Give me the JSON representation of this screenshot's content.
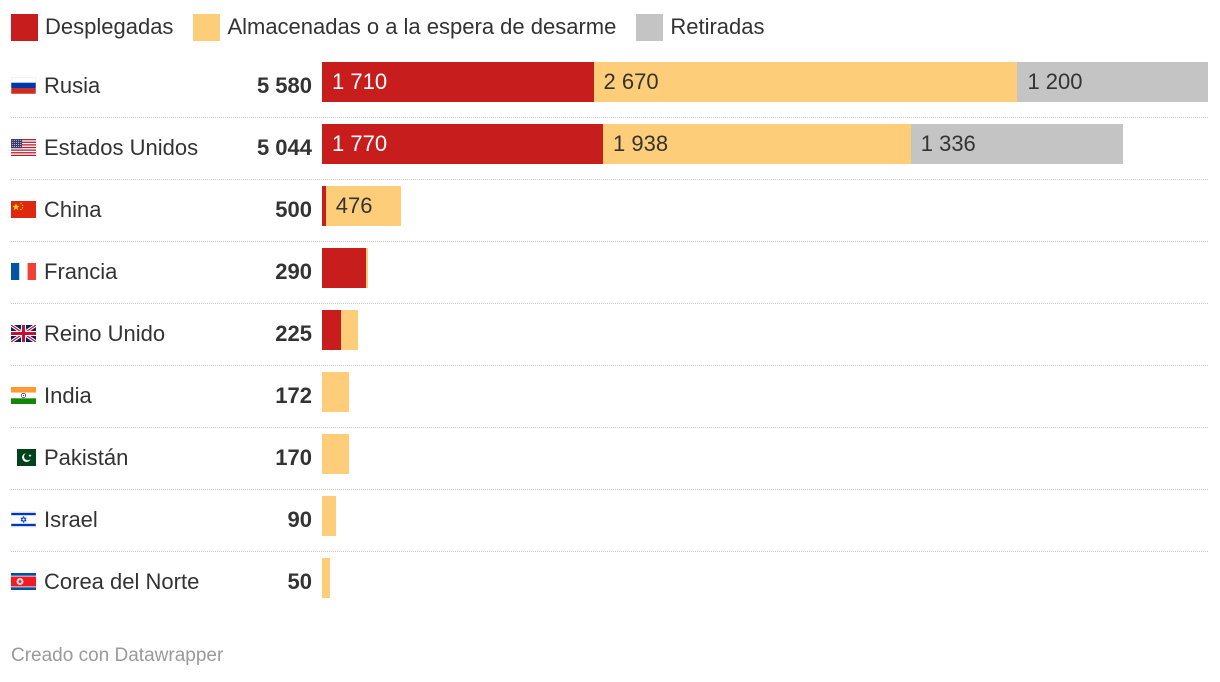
{
  "colors": {
    "desplegadas": "#c71e1d",
    "almacenadas": "#fecd79",
    "retiradas": "#c4c4c4"
  },
  "legend": [
    {
      "label": "Desplegadas",
      "color": "#c71e1d"
    },
    {
      "label": "Almacenadas o a la espera de desarme",
      "color": "#fecd79"
    },
    {
      "label": "Retiradas",
      "color": "#c4c4c4"
    }
  ],
  "chart_data": {
    "type": "bar",
    "orientation": "horizontal",
    "stacked": true,
    "title": "",
    "xlabel": "",
    "ylabel": "",
    "xlim": [
      0,
      5580
    ],
    "grid": false,
    "legend_position": "top-left",
    "series": [
      {
        "name": "Desplegadas",
        "color": "#c71e1d",
        "values": [
          1710,
          1770,
          24,
          280,
          120,
          0,
          0,
          0,
          0
        ]
      },
      {
        "name": "Almacenadas o a la espera de desarme",
        "color": "#fecd79",
        "values": [
          2670,
          1938,
          476,
          10,
          105,
          172,
          170,
          90,
          50
        ]
      },
      {
        "name": "Retiradas",
        "color": "#c4c4c4",
        "values": [
          1200,
          1336,
          0,
          0,
          0,
          0,
          0,
          0,
          0
        ]
      }
    ],
    "rows": [
      {
        "country": "Rusia",
        "flag": "russia-flag-icon",
        "total": "5 580",
        "segments": [
          {
            "value": 1710,
            "label": "1 710"
          },
          {
            "value": 2670,
            "label": "2 670"
          },
          {
            "value": 1200,
            "label": "1 200"
          }
        ]
      },
      {
        "country": "Estados Unidos",
        "flag": "usa-flag-icon",
        "total": "5 044",
        "segments": [
          {
            "value": 1770,
            "label": "1 770"
          },
          {
            "value": 1938,
            "label": "1 938"
          },
          {
            "value": 1336,
            "label": "1 336"
          }
        ]
      },
      {
        "country": "China",
        "flag": "china-flag-icon",
        "total": "500",
        "segments": [
          {
            "value": 24,
            "label": ""
          },
          {
            "value": 476,
            "label": "476"
          },
          {
            "value": 0,
            "label": ""
          }
        ]
      },
      {
        "country": "Francia",
        "flag": "france-flag-icon",
        "total": "290",
        "segments": [
          {
            "value": 280,
            "label": ""
          },
          {
            "value": 10,
            "label": ""
          },
          {
            "value": 0,
            "label": ""
          }
        ]
      },
      {
        "country": "Reino Unido",
        "flag": "uk-flag-icon",
        "total": "225",
        "segments": [
          {
            "value": 120,
            "label": ""
          },
          {
            "value": 105,
            "label": ""
          },
          {
            "value": 0,
            "label": ""
          }
        ]
      },
      {
        "country": "India",
        "flag": "india-flag-icon",
        "total": "172",
        "segments": [
          {
            "value": 0,
            "label": ""
          },
          {
            "value": 172,
            "label": ""
          },
          {
            "value": 0,
            "label": ""
          }
        ]
      },
      {
        "country": "Pakistán",
        "flag": "pakistan-flag-icon",
        "total": "170",
        "segments": [
          {
            "value": 0,
            "label": ""
          },
          {
            "value": 170,
            "label": ""
          },
          {
            "value": 0,
            "label": ""
          }
        ]
      },
      {
        "country": "Israel",
        "flag": "israel-flag-icon",
        "total": "90",
        "segments": [
          {
            "value": 0,
            "label": ""
          },
          {
            "value": 90,
            "label": ""
          },
          {
            "value": 0,
            "label": ""
          }
        ]
      },
      {
        "country": "Corea del Norte",
        "flag": "north-korea-flag-icon",
        "total": "50",
        "segments": [
          {
            "value": 0,
            "label": ""
          },
          {
            "value": 50,
            "label": ""
          },
          {
            "value": 0,
            "label": ""
          }
        ]
      }
    ]
  },
  "footer": {
    "credit": "Creado con Datawrapper"
  }
}
